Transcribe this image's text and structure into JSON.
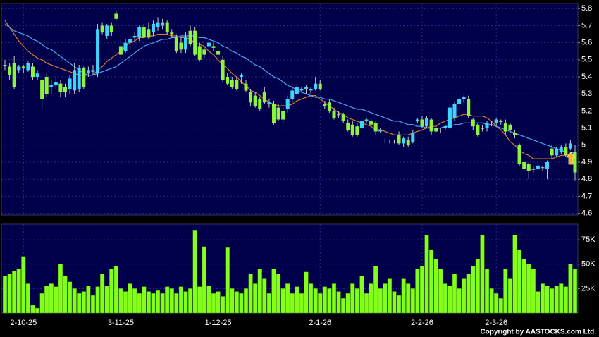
{
  "chart_data": [
    {
      "type": "candlestick",
      "up_color": "#3fd4ff",
      "down_color": "#8cf53a",
      "wick_color": "#c8c8c8",
      "grid": true,
      "ylim": [
        4.59,
        5.83
      ],
      "yticks": [
        4.6,
        4.7,
        4.8,
        4.9,
        5,
        5.1,
        5.2,
        5.3,
        5.4,
        5.5,
        5.6,
        5.7,
        5.8
      ],
      "open": [
        5.47,
        5.46,
        5.48,
        5.44,
        5.46,
        5.44,
        5.46,
        5.4,
        5.38,
        5.4,
        5.34,
        5.35,
        5.36,
        5.34,
        5.33,
        5.32,
        5.33,
        5.45,
        5.42,
        5.43,
        5.42,
        5.7,
        5.64,
        5.7,
        5.77,
        5.58,
        5.55,
        5.6,
        5.63,
        5.63,
        5.69,
        5.68,
        5.66,
        5.69,
        5.7,
        5.72,
        5.66,
        5.63,
        5.6,
        5.56,
        5.67,
        5.67,
        5.58,
        5.56,
        5.58,
        5.58,
        5.55,
        5.5,
        5.4,
        5.38,
        5.38,
        5.4,
        5.36,
        5.31,
        5.29,
        5.27,
        5.31,
        5.24,
        5.24,
        5.22,
        5.2,
        5.21,
        5.27,
        5.3,
        5.32,
        5.33,
        5.32,
        5.33,
        5.36,
        5.24,
        5.25,
        5.2,
        5.18,
        5.18,
        5.13,
        5.12,
        5.11,
        5.1,
        5.14,
        5.14,
        5.13,
        5.08,
        5.02,
        5.02,
        5.02,
        5.06,
        5.01,
        5.03,
        5.02,
        5.14,
        5.15,
        5.11,
        5.15,
        5.1,
        5.09,
        5.1,
        5.1,
        5.16,
        5.24,
        5.27,
        5.27,
        5.15,
        5.12,
        5.1,
        5.1,
        5.12,
        5.13,
        5.14,
        5.13,
        5.12,
        5.07,
        5.0,
        4.9,
        4.89,
        4.86,
        4.86,
        4.87,
        4.86,
        4.98,
        4.94,
        4.96,
        4.99,
        4.98,
        4.96
      ],
      "high": [
        5.5,
        5.48,
        5.52,
        5.47,
        5.47,
        5.49,
        5.48,
        5.44,
        5.39,
        5.42,
        5.38,
        5.39,
        5.38,
        5.36,
        5.41,
        5.48,
        5.47,
        5.46,
        5.46,
        5.47,
        5.71,
        5.72,
        5.71,
        5.72,
        5.79,
        5.62,
        5.62,
        5.64,
        5.66,
        5.7,
        5.71,
        5.72,
        5.73,
        5.75,
        5.74,
        5.73,
        5.68,
        5.65,
        5.63,
        5.66,
        5.7,
        5.69,
        5.6,
        5.58,
        5.62,
        5.6,
        5.58,
        5.52,
        5.42,
        5.4,
        5.4,
        5.42,
        5.38,
        5.33,
        5.31,
        5.28,
        5.34,
        5.27,
        5.26,
        5.24,
        5.22,
        5.29,
        5.34,
        5.36,
        5.34,
        5.35,
        5.34,
        5.4,
        5.38,
        5.26,
        5.27,
        5.22,
        5.2,
        5.19,
        5.15,
        5.14,
        5.13,
        5.16,
        5.16,
        5.16,
        5.14,
        5.1,
        5.04,
        5.03,
        5.03,
        5.08,
        5.05,
        5.05,
        5.09,
        5.16,
        5.17,
        5.17,
        5.16,
        5.11,
        5.1,
        5.12,
        5.24,
        5.25,
        5.28,
        5.29,
        5.29,
        5.16,
        5.13,
        5.12,
        5.14,
        5.14,
        5.16,
        5.15,
        5.15,
        5.13,
        5.09,
        5.01,
        4.91,
        4.9,
        4.88,
        4.89,
        4.88,
        4.91,
        5.0,
        4.99,
        5.0,
        5.01,
        5.03,
        5.0
      ],
      "low": [
        5.44,
        5.38,
        5.33,
        5.42,
        5.42,
        5.43,
        5.38,
        5.38,
        5.21,
        5.28,
        5.3,
        5.33,
        5.28,
        5.28,
        5.3,
        5.3,
        5.31,
        5.33,
        5.4,
        5.41,
        5.4,
        5.65,
        5.62,
        5.64,
        5.73,
        5.5,
        5.54,
        5.56,
        5.61,
        5.61,
        5.62,
        5.62,
        5.64,
        5.67,
        5.68,
        5.65,
        5.63,
        5.54,
        5.54,
        5.54,
        5.58,
        5.52,
        5.49,
        5.51,
        5.56,
        5.55,
        5.51,
        5.37,
        5.35,
        5.33,
        5.32,
        5.36,
        5.31,
        5.23,
        5.22,
        5.2,
        5.24,
        5.22,
        5.12,
        5.14,
        5.13,
        5.19,
        5.25,
        5.29,
        5.31,
        5.3,
        5.3,
        5.32,
        5.32,
        5.21,
        5.19,
        5.15,
        5.16,
        5.13,
        5.08,
        5.05,
        5.05,
        5.08,
        5.13,
        5.11,
        5.06,
        5.07,
        5.01,
        5.01,
        5.01,
        5.0,
        4.99,
        4.99,
        5.01,
        5.13,
        5.1,
        5.1,
        5.06,
        5.07,
        5.07,
        5.09,
        5.09,
        5.14,
        5.22,
        5.25,
        5.16,
        5.09,
        5.05,
        5.08,
        5.08,
        5.11,
        5.11,
        5.12,
        5.06,
        5.07,
        5.04,
        4.88,
        4.85,
        4.8,
        4.84,
        4.85,
        4.85,
        4.8,
        4.92,
        4.93,
        4.95,
        4.93,
        4.97,
        4.79
      ],
      "close": [
        5.47,
        5.41,
        5.34,
        5.46,
        5.45,
        5.48,
        5.4,
        5.42,
        5.27,
        5.3,
        5.35,
        5.37,
        5.31,
        5.31,
        5.39,
        5.44,
        5.45,
        5.34,
        5.44,
        5.44,
        5.68,
        5.66,
        5.7,
        5.66,
        5.74,
        5.53,
        5.6,
        5.62,
        5.64,
        5.69,
        5.63,
        5.63,
        5.71,
        5.72,
        5.72,
        5.66,
        5.65,
        5.55,
        5.56,
        5.63,
        5.59,
        5.53,
        5.5,
        5.53,
        5.6,
        5.57,
        5.53,
        5.38,
        5.36,
        5.34,
        5.33,
        5.41,
        5.32,
        5.25,
        5.23,
        5.21,
        5.25,
        5.25,
        5.13,
        5.15,
        5.15,
        5.27,
        5.32,
        5.34,
        5.33,
        5.34,
        5.33,
        5.36,
        5.33,
        5.23,
        5.2,
        5.16,
        5.18,
        5.14,
        5.09,
        5.06,
        5.06,
        5.14,
        5.15,
        5.12,
        5.08,
        5.09,
        5.02,
        5.02,
        5.02,
        5.01,
        5.04,
        5.0,
        5.07,
        5.15,
        5.11,
        5.16,
        5.08,
        5.08,
        5.09,
        5.11,
        5.22,
        5.24,
        5.27,
        5.28,
        5.17,
        5.11,
        5.06,
        5.1,
        5.13,
        5.12,
        5.15,
        5.14,
        5.08,
        5.09,
        5.06,
        4.89,
        4.86,
        4.85,
        4.86,
        4.88,
        4.87,
        4.9,
        4.94,
        4.98,
        4.99,
        4.94,
        5.01,
        4.84
      ],
      "ma": [
        {
          "color": "#e07a2a",
          "values": [
            5.73,
            5.69,
            5.65,
            5.61,
            5.58,
            5.55,
            5.53,
            5.51,
            5.5,
            5.48,
            5.47,
            5.46,
            5.45,
            5.44,
            5.43,
            5.42,
            5.41,
            5.41,
            5.41,
            5.41,
            5.44,
            5.46,
            5.49,
            5.51,
            5.53,
            5.55,
            5.58,
            5.6,
            5.61,
            5.63,
            5.63,
            5.64,
            5.64,
            5.65,
            5.65,
            5.65,
            5.64,
            5.64,
            5.63,
            5.63,
            5.62,
            5.6,
            5.59,
            5.58,
            5.55,
            5.53,
            5.5,
            5.47,
            5.45,
            5.42,
            5.4,
            5.37,
            5.35,
            5.32,
            5.31,
            5.29,
            5.27,
            5.25,
            5.24,
            5.23,
            5.23,
            5.23,
            5.24,
            5.26,
            5.27,
            5.28,
            5.29,
            5.29,
            5.27,
            5.25,
            5.23,
            5.21,
            5.19,
            5.18,
            5.16,
            5.15,
            5.14,
            5.13,
            5.12,
            5.11,
            5.09,
            5.09,
            5.08,
            5.07,
            5.06,
            5.06,
            5.06,
            5.06,
            5.07,
            5.08,
            5.09,
            5.1,
            5.11,
            5.11,
            5.13,
            5.14,
            5.15,
            5.16,
            5.17,
            5.18,
            5.18,
            5.17,
            5.17,
            5.17,
            5.16,
            5.14,
            5.11,
            5.09,
            5.06,
            5.02,
            5.0,
            4.97,
            4.95,
            4.94,
            4.92,
            4.92,
            4.92,
            4.92,
            4.92,
            4.93,
            4.94,
            4.94,
            4.95,
            4.96
          ]
        },
        {
          "color": "#4aa6f0",
          "values": [
            5.71,
            5.69,
            5.67,
            5.66,
            5.65,
            5.64,
            5.62,
            5.61,
            5.59,
            5.57,
            5.56,
            5.54,
            5.52,
            5.5,
            5.48,
            5.46,
            5.44,
            5.42,
            5.41,
            5.41,
            5.42,
            5.43,
            5.44,
            5.45,
            5.46,
            5.48,
            5.5,
            5.52,
            5.54,
            5.56,
            5.58,
            5.59,
            5.6,
            5.61,
            5.62,
            5.62,
            5.63,
            5.63,
            5.64,
            5.64,
            5.64,
            5.64,
            5.63,
            5.63,
            5.62,
            5.61,
            5.6,
            5.58,
            5.57,
            5.55,
            5.54,
            5.52,
            5.51,
            5.49,
            5.47,
            5.46,
            5.44,
            5.42,
            5.4,
            5.39,
            5.37,
            5.35,
            5.34,
            5.32,
            5.31,
            5.3,
            5.29,
            5.28,
            5.28,
            5.27,
            5.27,
            5.26,
            5.25,
            5.24,
            5.23,
            5.22,
            5.21,
            5.21,
            5.2,
            5.19,
            5.18,
            5.17,
            5.16,
            5.15,
            5.14,
            5.14,
            5.13,
            5.12,
            5.12,
            5.11,
            5.11,
            5.1,
            5.1,
            5.1,
            5.1,
            5.11,
            5.11,
            5.12,
            5.12,
            5.13,
            5.13,
            5.13,
            5.13,
            5.13,
            5.12,
            5.12,
            5.11,
            5.1,
            5.09,
            5.08,
            5.07,
            5.06,
            5.05,
            5.04,
            5.03,
            5.02,
            5.01,
            5.0,
            4.99,
            4.98,
            4.97,
            4.96,
            4.96,
            4.95
          ]
        }
      ]
    },
    {
      "type": "bar",
      "color": "#84ff1a",
      "grid": true,
      "categories": [
        null,
        null,
        null,
        null,
        "2-10-25",
        null,
        null,
        null,
        null,
        null,
        null,
        null,
        null,
        null,
        null,
        null,
        null,
        null,
        null,
        null,
        null,
        null,
        null,
        null,
        null,
        "3-11-25",
        null,
        null,
        null,
        null,
        null,
        null,
        null,
        null,
        null,
        null,
        null,
        null,
        null,
        null,
        null,
        null,
        null,
        null,
        null,
        null,
        "1-12-25",
        null,
        null,
        null,
        null,
        null,
        null,
        null,
        null,
        null,
        null,
        null,
        null,
        null,
        null,
        null,
        null,
        null,
        null,
        null,
        null,
        null,
        "2-1-26",
        null,
        null,
        null,
        null,
        null,
        null,
        null,
        null,
        null,
        null,
        null,
        null,
        null,
        null,
        null,
        null,
        null,
        null,
        null,
        null,
        null,
        "2-2-26",
        null,
        null,
        null,
        null,
        null,
        null,
        null,
        null,
        null,
        null,
        null,
        null,
        null,
        null,
        null,
        "2-3-26",
        null,
        null,
        null,
        null,
        null,
        null,
        null,
        null,
        null,
        null,
        null,
        null,
        null,
        null,
        null,
        null,
        null
      ],
      "values": [
        38000,
        40000,
        43000,
        45000,
        58000,
        30000,
        8000,
        5000,
        20000,
        28000,
        30000,
        27000,
        50000,
        38000,
        32000,
        25000,
        20000,
        22000,
        28000,
        18000,
        27000,
        40000,
        28000,
        45000,
        48000,
        25000,
        22000,
        30000,
        25000,
        20000,
        27000,
        22000,
        20000,
        23000,
        20000,
        27000,
        25000,
        20000,
        27000,
        22000,
        25000,
        85000,
        27000,
        68000,
        28000,
        20000,
        22000,
        17000,
        67000,
        25000,
        22000,
        20000,
        25000,
        40000,
        30000,
        45000,
        35000,
        20000,
        45000,
        40000,
        25000,
        30000,
        20000,
        27000,
        20000,
        42000,
        30000,
        25000,
        20000,
        27000,
        25000,
        30000,
        22000,
        15000,
        20000,
        30000,
        25000,
        38000,
        20000,
        30000,
        48000,
        25000,
        30000,
        35000,
        22000,
        18000,
        35000,
        30000,
        25000,
        45000,
        48000,
        80000,
        65000,
        55000,
        45000,
        30000,
        28000,
        40000,
        25000,
        35000,
        40000,
        48000,
        55000,
        80000,
        45000,
        25000,
        20000,
        15000,
        45000,
        35000,
        80000,
        65000,
        55000,
        50000,
        45000,
        22000,
        30000,
        28000,
        25000,
        28000,
        30000,
        27000,
        50000,
        45000
      ],
      "ylim": [
        0,
        91000
      ],
      "yticks": [
        {
          "value": 25000,
          "label": "25K"
        },
        {
          "value": 50000,
          "label": "50K"
        },
        {
          "value": 75000,
          "label": "75K"
        }
      ]
    }
  ],
  "footer": {
    "copyright": "Copyright by AASTOCKS.com Ltd."
  }
}
